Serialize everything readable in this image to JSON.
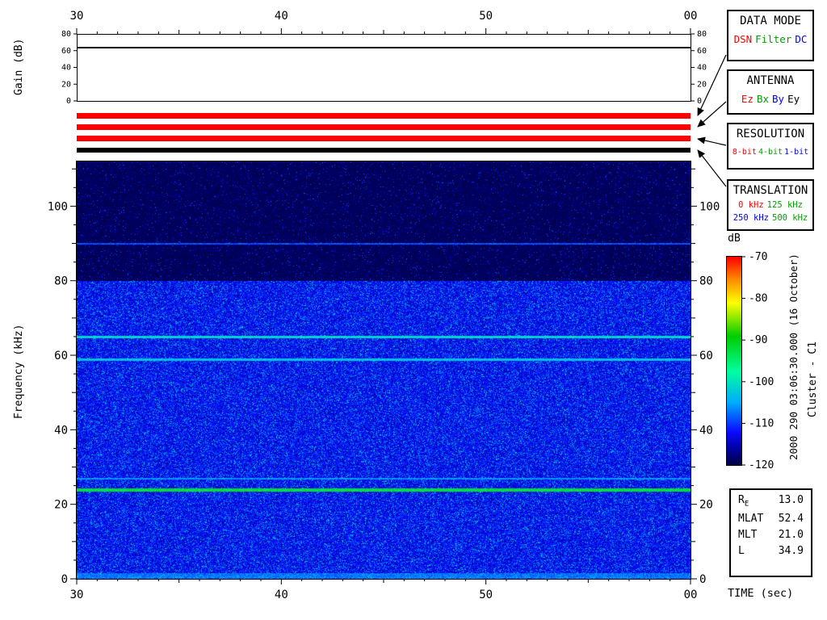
{
  "labels": {
    "gain_axis": "Gain (dB)",
    "freq_axis": "Frequency (kHz)",
    "time_axis": "TIME (sec)",
    "colorbar_title": "dB",
    "date_annotation": "2000 290 03:06:30.000 (16 October)",
    "spacecraft_annotation": "Cluster - C1"
  },
  "info_boxes": [
    {
      "id": "data_mode",
      "title": "DATA MODE",
      "options": [
        {
          "label": "DSN",
          "color": "#ff0000"
        },
        {
          "label": "Filter",
          "color": "#00a000"
        },
        {
          "label": "DC",
          "color": "#0000ff"
        }
      ]
    },
    {
      "id": "antenna",
      "title": "ANTENNA",
      "options": [
        {
          "label": "Ez",
          "color": "#ff0000"
        },
        {
          "label": "Bx",
          "color": "#00a000"
        },
        {
          "label": "By",
          "color": "#0000ff"
        },
        {
          "label": "Ey",
          "color": "#000000"
        }
      ]
    },
    {
      "id": "resolution",
      "title": "RESOLUTION",
      "options": [
        {
          "label": "8-bit",
          "color": "#ff0000"
        },
        {
          "label": "4-bit",
          "color": "#00a000"
        },
        {
          "label": "1-bit",
          "color": "#0000ff"
        }
      ]
    },
    {
      "id": "translation",
      "title": "TRANSLATION",
      "options": [
        {
          "label": "0 kHz",
          "color": "#ff0000"
        },
        {
          "label": "125 kHz",
          "color": "#00a000"
        },
        {
          "label": "250 kHz",
          "color": "#0000ff"
        },
        {
          "label": "500 kHz",
          "color": "#00a000"
        }
      ]
    }
  ],
  "status_bars": [
    {
      "name": "data-mode",
      "color": "#ff0000"
    },
    {
      "name": "antenna",
      "color": "#ff0000"
    },
    {
      "name": "resolution",
      "color": "#ff0000"
    },
    {
      "name": "translation",
      "color": "#000000"
    }
  ],
  "ephemeris": {
    "rows": [
      {
        "label": "R",
        "sub": "E",
        "value": "13.0"
      },
      {
        "label": "MLAT",
        "sub": "",
        "value": "52.4"
      },
      {
        "label": "MLT",
        "sub": "",
        "value": "21.0"
      },
      {
        "label": "L",
        "sub": "",
        "value": "34.9"
      }
    ]
  },
  "chart_data": [
    {
      "type": "line",
      "title": "Receiver gain vs time",
      "ylabel": "Gain (dB)",
      "ylim": [
        0,
        80
      ],
      "yticks": [
        0,
        20,
        40,
        60,
        80
      ],
      "xlabel": "TIME (sec)",
      "x_ticklabels": [
        "30",
        "40",
        "50",
        "00"
      ],
      "x_span_sec": 30,
      "series": [
        {
          "name": "gain",
          "shape": "constant",
          "level_db": 64
        }
      ]
    },
    {
      "type": "heatmap",
      "title": "Cluster C1 WBD spectrogram",
      "xlabel": "TIME (sec)",
      "ylabel": "Frequency (kHz)",
      "x_ticklabels": [
        "30",
        "40",
        "50",
        "00"
      ],
      "x_span_sec": 30,
      "ylim": [
        0,
        112
      ],
      "yticks": [
        0,
        20,
        40,
        60,
        80,
        100
      ],
      "colorbar": {
        "label": "dB",
        "max": -70,
        "min": -120,
        "ticks": [
          -70,
          -80,
          -90,
          -100,
          -110,
          -120
        ]
      },
      "noise_floor_db": {
        "below_80_khz": -113,
        "above_80_khz": -119
      },
      "spectral_lines": [
        {
          "freq_khz": 90,
          "level_db": -109,
          "half_width_khz": 0.3
        },
        {
          "freq_khz": 65,
          "level_db": -101,
          "half_width_khz": 0.3
        },
        {
          "freq_khz": 59,
          "level_db": -103,
          "half_width_khz": 0.3
        },
        {
          "freq_khz": 27,
          "level_db": -106,
          "half_width_khz": 0.25
        },
        {
          "freq_khz": 24,
          "level_db": -92,
          "half_width_khz": 0.4
        }
      ]
    }
  ]
}
